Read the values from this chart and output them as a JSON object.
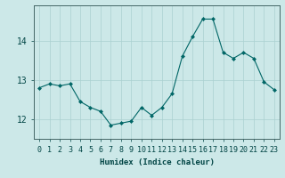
{
  "x": [
    0,
    1,
    2,
    3,
    4,
    5,
    6,
    7,
    8,
    9,
    10,
    11,
    12,
    13,
    14,
    15,
    16,
    17,
    18,
    19,
    20,
    21,
    22,
    23
  ],
  "y": [
    12.8,
    12.9,
    12.85,
    12.9,
    12.45,
    12.3,
    12.2,
    11.85,
    11.9,
    11.95,
    12.3,
    12.1,
    12.3,
    12.65,
    13.6,
    14.1,
    14.55,
    14.55,
    13.7,
    13.55,
    13.7,
    13.55,
    12.95,
    12.75
  ],
  "xlabel": "Humidex (Indice chaleur)",
  "ylim": [
    11.5,
    14.9
  ],
  "yticks": [
    12,
    13,
    14
  ],
  "xticks": [
    0,
    1,
    2,
    3,
    4,
    5,
    6,
    7,
    8,
    9,
    10,
    11,
    12,
    13,
    14,
    15,
    16,
    17,
    18,
    19,
    20,
    21,
    22,
    23
  ],
  "line_color": "#006666",
  "marker_color": "#006666",
  "bg_color": "#cce8e8",
  "grid_color": "#aad0d0",
  "axis_color": "#446666",
  "text_color": "#004444",
  "xlabel_fontsize": 6.5,
  "tick_fontsize": 6
}
